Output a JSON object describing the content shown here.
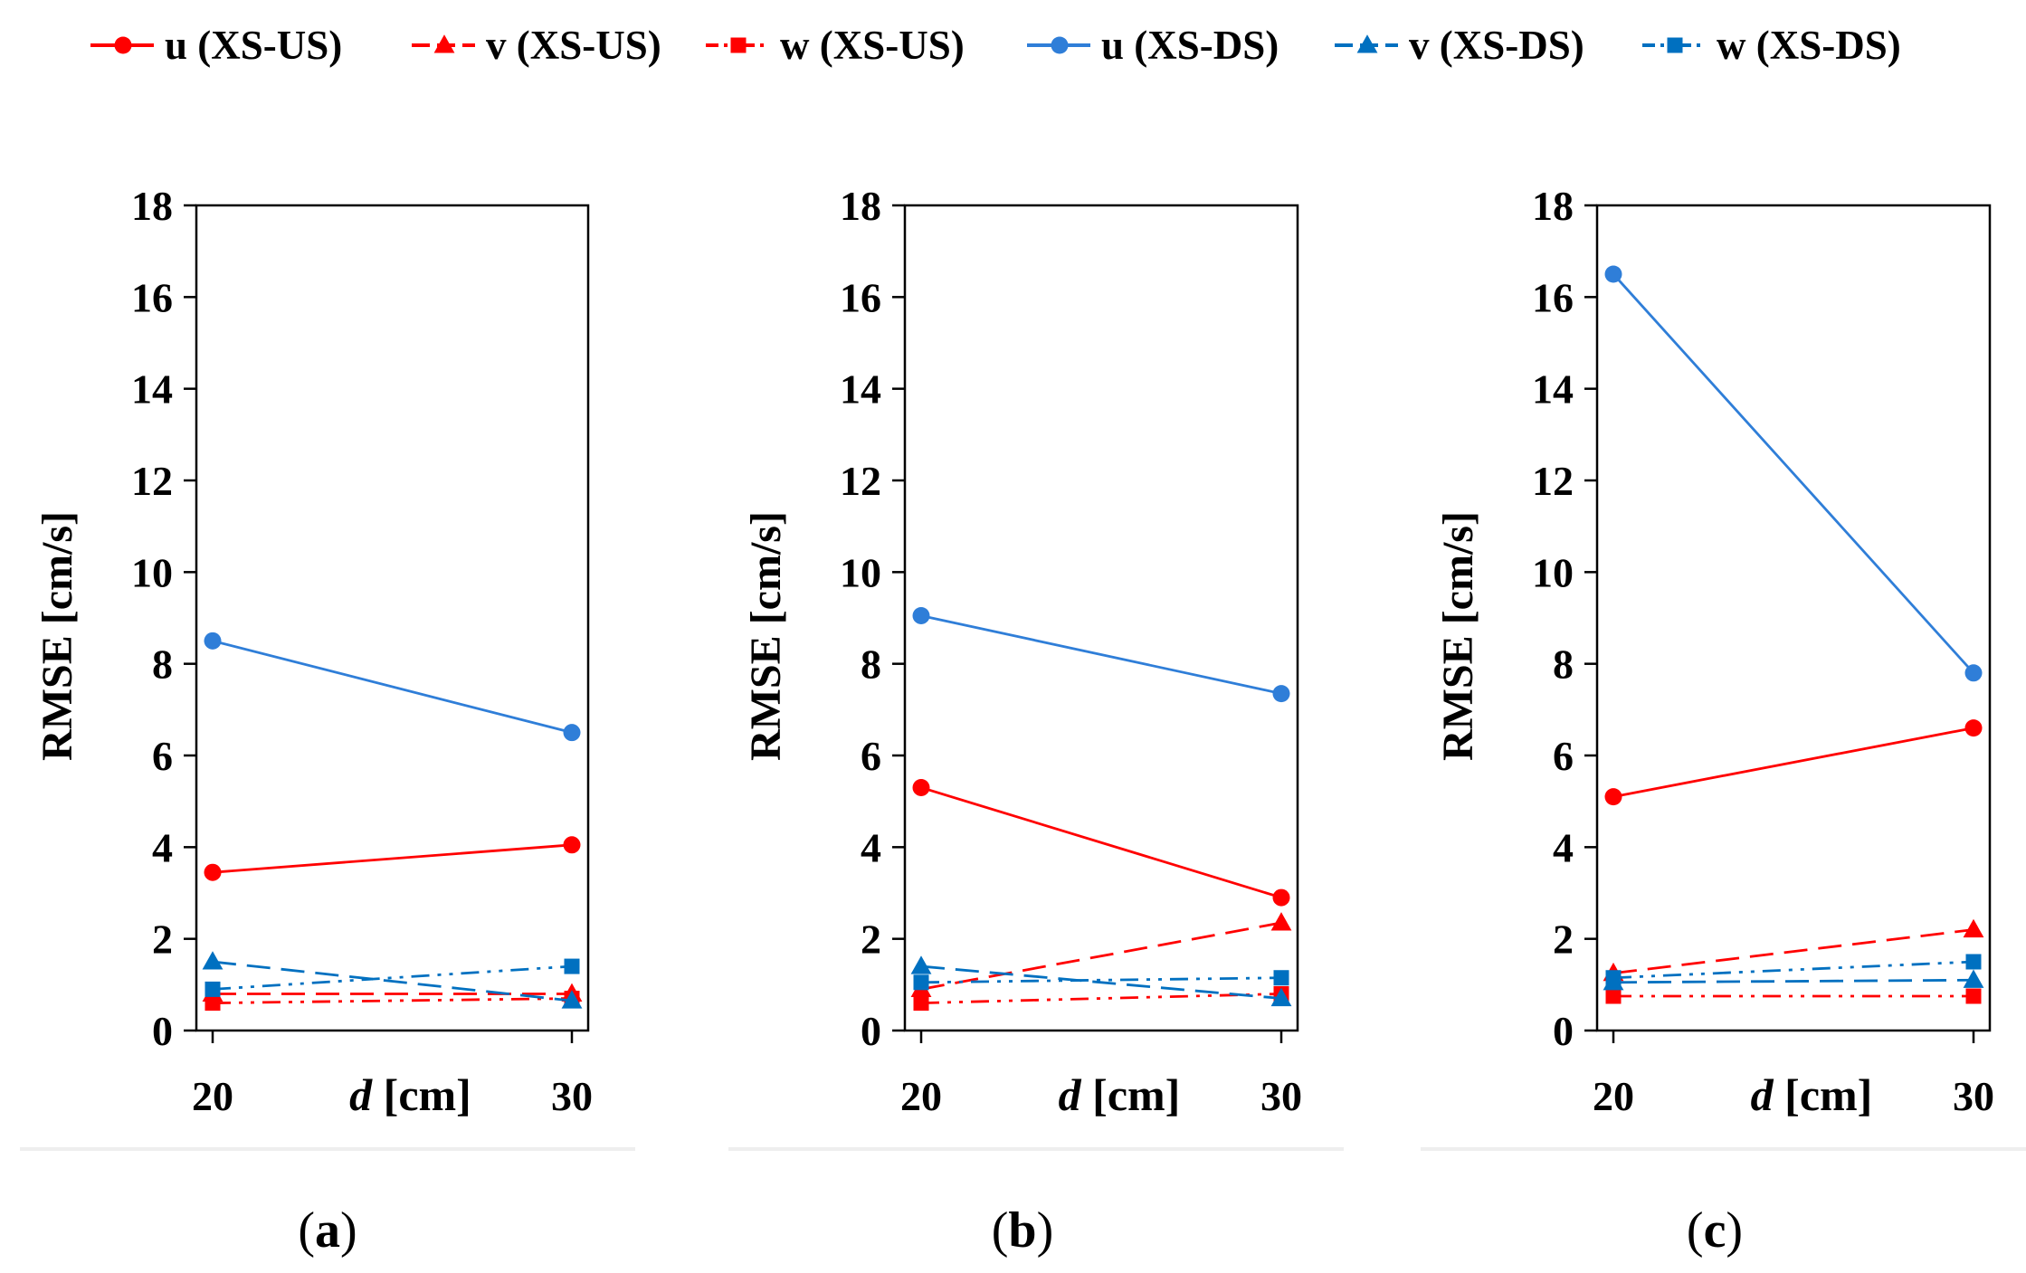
{
  "legend": [
    {
      "label": "u (XS-US)",
      "color": "#FF0000",
      "marker": "circle",
      "dash": "solid"
    },
    {
      "label": "v (XS-US)",
      "color": "#FF0000",
      "marker": "triangle",
      "dash": "long-dash"
    },
    {
      "label": "w (XS-US)",
      "color": "#FF0000",
      "marker": "square",
      "dash": "dash-dot-dot"
    },
    {
      "label": "u (XS-DS)",
      "color": "#2F7ED8",
      "marker": "circle",
      "dash": "solid"
    },
    {
      "label": "v (XS-DS)",
      "color": "#0070C0",
      "marker": "triangle",
      "dash": "long-dash"
    },
    {
      "label": "w (XS-DS)",
      "color": "#0070C0",
      "marker": "square",
      "dash": "dash-dot-dot"
    }
  ],
  "chart_data": [
    {
      "type": "line",
      "caption": {
        "open": "(",
        "letter": "a",
        "close": ")"
      },
      "x": [
        20,
        30
      ],
      "xlabel": {
        "var": "d",
        "unit": " [cm]"
      },
      "ylabel": "RMSE [cm/s]",
      "ylim": [
        0,
        18
      ],
      "yticks": [
        "0",
        "2",
        "4",
        "6",
        "8",
        "10",
        "12",
        "14",
        "16",
        "18"
      ],
      "xticks": [
        "20",
        "30"
      ],
      "series": [
        {
          "name": "u (XS-US)",
          "values": [
            3.45,
            4.05
          ]
        },
        {
          "name": "v (XS-US)",
          "values": [
            0.8,
            0.8
          ]
        },
        {
          "name": "w (XS-US)",
          "values": [
            0.6,
            0.7
          ]
        },
        {
          "name": "u (XS-DS)",
          "values": [
            8.5,
            6.5
          ]
        },
        {
          "name": "v (XS-DS)",
          "values": [
            1.5,
            0.65
          ]
        },
        {
          "name": "w (XS-DS)",
          "values": [
            0.9,
            1.4
          ]
        }
      ]
    },
    {
      "type": "line",
      "caption": {
        "open": "(",
        "letter": "b",
        "close": ")"
      },
      "x": [
        20,
        30
      ],
      "xlabel": {
        "var": "d",
        "unit": " [cm]"
      },
      "ylabel": "RMSE [cm/s]",
      "ylim": [
        0,
        18
      ],
      "yticks": [
        "0",
        "2",
        "4",
        "6",
        "8",
        "10",
        "12",
        "14",
        "16",
        "18"
      ],
      "xticks": [
        "20",
        "30"
      ],
      "series": [
        {
          "name": "u (XS-US)",
          "values": [
            5.3,
            2.9
          ]
        },
        {
          "name": "v (XS-US)",
          "values": [
            0.9,
            2.35
          ]
        },
        {
          "name": "w (XS-US)",
          "values": [
            0.6,
            0.8
          ]
        },
        {
          "name": "u (XS-DS)",
          "values": [
            9.05,
            7.35
          ]
        },
        {
          "name": "v (XS-DS)",
          "values": [
            1.4,
            0.7
          ]
        },
        {
          "name": "w (XS-DS)",
          "values": [
            1.05,
            1.15
          ]
        }
      ]
    },
    {
      "type": "line",
      "caption": {
        "open": "(",
        "letter": "c",
        "close": ")"
      },
      "x": [
        20,
        30
      ],
      "xlabel": {
        "var": "d",
        "unit": " [cm]"
      },
      "ylabel": "RMSE [cm/s]",
      "ylim": [
        0,
        18
      ],
      "yticks": [
        "0",
        "2",
        "4",
        "6",
        "8",
        "10",
        "12",
        "14",
        "16",
        "18"
      ],
      "xticks": [
        "20",
        "30"
      ],
      "series": [
        {
          "name": "u (XS-US)",
          "values": [
            5.1,
            6.6
          ]
        },
        {
          "name": "v (XS-US)",
          "values": [
            1.25,
            2.2
          ]
        },
        {
          "name": "w (XS-US)",
          "values": [
            0.75,
            0.75
          ]
        },
        {
          "name": "u (XS-DS)",
          "values": [
            16.5,
            7.8
          ]
        },
        {
          "name": "v (XS-DS)",
          "values": [
            1.05,
            1.1
          ]
        },
        {
          "name": "w (XS-DS)",
          "values": [
            1.15,
            1.5
          ]
        }
      ]
    }
  ]
}
